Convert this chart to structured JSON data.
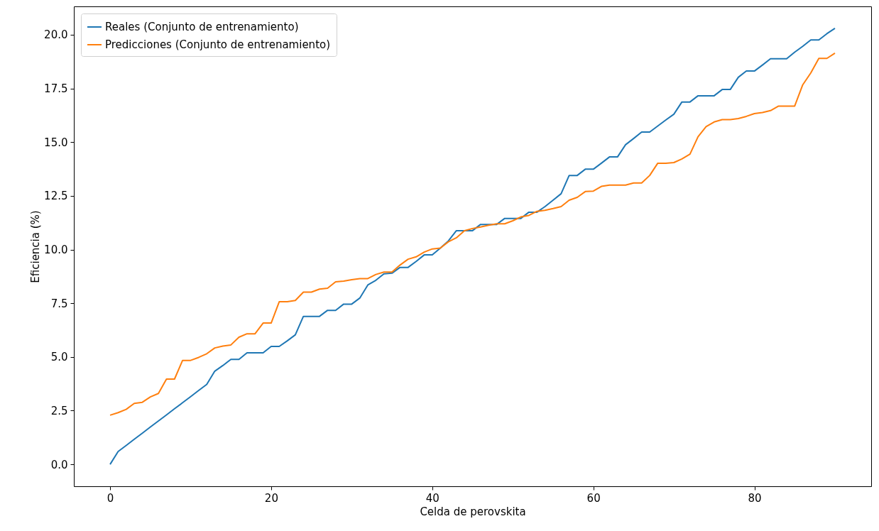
{
  "chart_data": {
    "type": "line",
    "xlabel": "Celda de perovskita",
    "ylabel": "Eficiencia (%)",
    "x": [
      0,
      1,
      2,
      3,
      4,
      5,
      6,
      7,
      8,
      9,
      10,
      11,
      12,
      13,
      14,
      15,
      16,
      17,
      18,
      19,
      20,
      21,
      22,
      23,
      24,
      25,
      26,
      27,
      28,
      29,
      30,
      31,
      32,
      33,
      34,
      35,
      36,
      37,
      38,
      39,
      40,
      41,
      42,
      43,
      44,
      45,
      46,
      47,
      48,
      49,
      50,
      51,
      52,
      53,
      54,
      55,
      56,
      57,
      58,
      59,
      60,
      61,
      62,
      63,
      64,
      65,
      66,
      67,
      68,
      69,
      70,
      71,
      72,
      73,
      74,
      75,
      76,
      77,
      78,
      79,
      80,
      81,
      82,
      83,
      84,
      85,
      86,
      87,
      88,
      89,
      90
    ],
    "series": [
      {
        "name": "Reales (Conjunto de entrenamiento)",
        "color": "#1f77b4",
        "values": [
          0,
          0.6,
          0.88,
          1.17,
          1.45,
          1.74,
          2.02,
          2.3,
          2.59,
          2.87,
          3.15,
          3.44,
          3.72,
          4.34,
          4.6,
          4.89,
          4.89,
          5.19,
          5.19,
          5.19,
          5.49,
          5.49,
          5.75,
          6.03,
          6.89,
          6.89,
          6.89,
          7.17,
          7.17,
          7.46,
          7.46,
          7.74,
          8.35,
          8.57,
          8.87,
          8.9,
          9.17,
          9.17,
          9.45,
          9.75,
          9.75,
          10.07,
          10.4,
          10.88,
          10.88,
          10.88,
          11.17,
          11.17,
          11.17,
          11.45,
          11.45,
          11.45,
          11.74,
          11.74,
          12.0,
          12.3,
          12.6,
          13.45,
          13.45,
          13.74,
          13.74,
          14.02,
          14.31,
          14.31,
          14.88,
          15.17,
          15.47,
          15.47,
          15.75,
          16.03,
          16.3,
          16.87,
          16.87,
          17.16,
          17.16,
          17.16,
          17.45,
          17.45,
          18.02,
          18.31,
          18.31,
          18.59,
          18.88,
          18.88,
          18.88,
          19.19,
          19.46,
          19.76,
          19.76,
          20.05,
          20.3
        ]
      },
      {
        "name": "Predicciones (Conjunto de entrenamiento)",
        "color": "#ff7f0e",
        "values": [
          2.29,
          2.41,
          2.56,
          2.84,
          2.89,
          3.14,
          3.3,
          3.97,
          3.97,
          4.84,
          4.84,
          4.98,
          5.15,
          5.42,
          5.51,
          5.56,
          5.92,
          6.08,
          6.08,
          6.58,
          6.58,
          7.57,
          7.57,
          7.63,
          8.02,
          8.02,
          8.16,
          8.2,
          8.5,
          8.53,
          8.6,
          8.65,
          8.65,
          8.84,
          8.95,
          8.95,
          9.28,
          9.55,
          9.66,
          9.88,
          10.03,
          10.07,
          10.36,
          10.55,
          10.88,
          10.98,
          11.05,
          11.13,
          11.2,
          11.2,
          11.34,
          11.52,
          11.59,
          11.78,
          11.83,
          11.91,
          12.0,
          12.3,
          12.43,
          12.7,
          12.72,
          12.94,
          13.0,
          13.0,
          13.0,
          13.1,
          13.1,
          13.45,
          14.02,
          14.02,
          14.05,
          14.22,
          14.44,
          15.25,
          15.72,
          15.94,
          16.05,
          16.05,
          16.1,
          16.2,
          16.33,
          16.38,
          16.47,
          16.68,
          16.68,
          16.68,
          17.67,
          18.22,
          18.9,
          18.9,
          19.14
        ]
      }
    ],
    "xlim": [
      -4.5,
      94.5
    ],
    "ylim": [
      -1.02,
      21.32
    ],
    "xticks": [
      0,
      20,
      40,
      60,
      80
    ],
    "yticks": [
      {
        "value": 0,
        "label": "0.0"
      },
      {
        "value": 2.5,
        "label": "2.5"
      },
      {
        "value": 5,
        "label": "5.0"
      },
      {
        "value": 7.5,
        "label": "7.5"
      },
      {
        "value": 10,
        "label": "10.0"
      },
      {
        "value": 12.5,
        "label": "12.5"
      },
      {
        "value": 15,
        "label": "15.0"
      },
      {
        "value": 17.5,
        "label": "17.5"
      },
      {
        "value": 20,
        "label": "20.0"
      }
    ],
    "legend": "top left",
    "line_style": "solid",
    "marker": "none"
  }
}
